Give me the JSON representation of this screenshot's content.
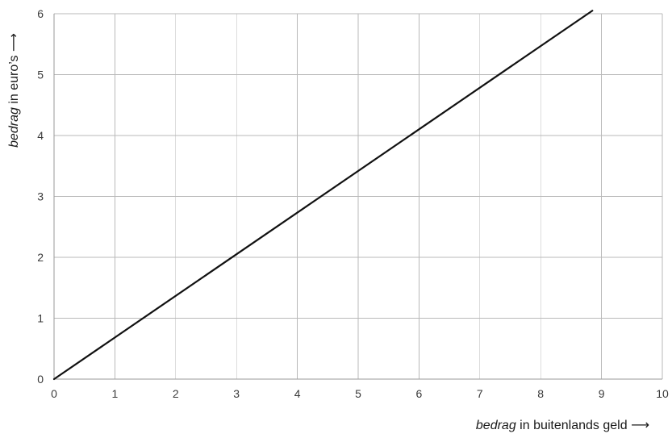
{
  "chart_data": {
    "type": "line",
    "xlabel_emph": "bedrag",
    "xlabel_rest": " in buitenlands geld ",
    "xlabel_arrow": "⟶",
    "ylabel_emph": "bedrag",
    "ylabel_rest": " in euro’s ",
    "ylabel_arrow": "⟶",
    "xlim": [
      0,
      10
    ],
    "ylim": [
      0,
      6
    ],
    "xticks": [
      0,
      1,
      2,
      3,
      4,
      5,
      6,
      7,
      8,
      9,
      10
    ],
    "yticks": [
      0,
      1,
      2,
      3,
      4,
      5,
      6
    ],
    "grid": true,
    "series": [
      {
        "x": [
          0,
          8.85
        ],
        "y": [
          0,
          6.05
        ]
      }
    ],
    "colors": {
      "line": "#111111",
      "grid": "#b9b9b9",
      "text": "#3a3a3a"
    }
  }
}
